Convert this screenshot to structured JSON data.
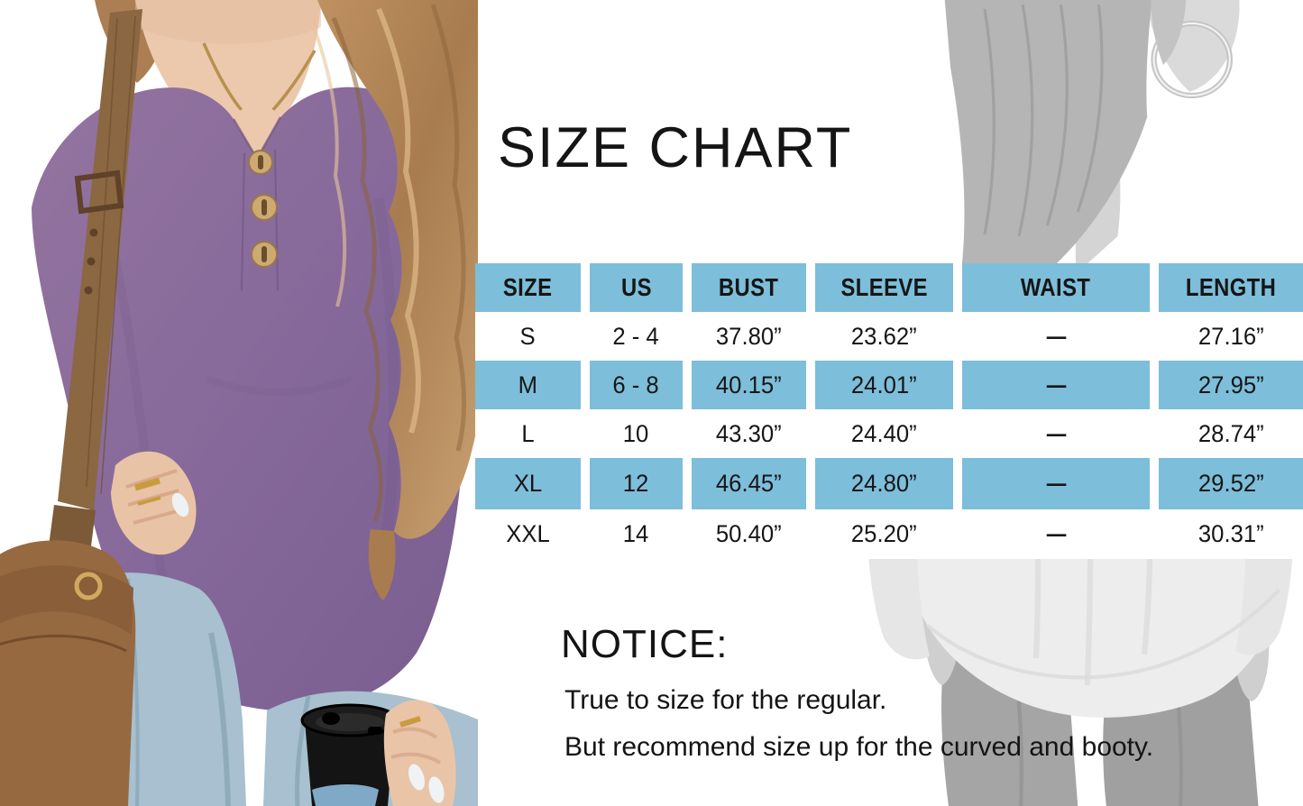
{
  "title": "SIZE CHART",
  "chart_data": {
    "type": "table",
    "title": "SIZE CHART",
    "columns": [
      "SIZE",
      "US",
      "BUST",
      "SLEEVE",
      "WAIST",
      "LENGTH"
    ],
    "rows": [
      [
        "S",
        "2 - 4",
        "37.80”",
        "23.62”",
        "—",
        "27.16”"
      ],
      [
        "M",
        "6 - 8",
        "40.15”",
        "24.01”",
        "—",
        "27.95”"
      ],
      [
        "L",
        "10",
        "43.30”",
        "24.40”",
        "—",
        "28.74”"
      ],
      [
        "XL",
        "12",
        "46.45”",
        "24.80”",
        "—",
        "29.52”"
      ],
      [
        "XXL",
        "14",
        "50.40”",
        "25.20”",
        "—",
        "30.31”"
      ]
    ],
    "layout": {
      "header_fill": "blue",
      "row_fill_pattern": [
        "white",
        "blue",
        "white",
        "blue",
        "white"
      ],
      "grid": "white gaps between columns"
    }
  },
  "notice": {
    "heading": "NOTICE:",
    "lines": [
      "True to size for the regular.",
      "But recommend size up for the curved and booty."
    ]
  },
  "images": {
    "left_model": "front-view-woman-purple-henley-top-photo",
    "right_model": "back-view-woman-white-top-grayscale-photo"
  },
  "colors": {
    "table_blue": "#7dbeda",
    "text": "#141414",
    "shirt_purple": "#8b6d9f",
    "background": "#ffffff"
  }
}
